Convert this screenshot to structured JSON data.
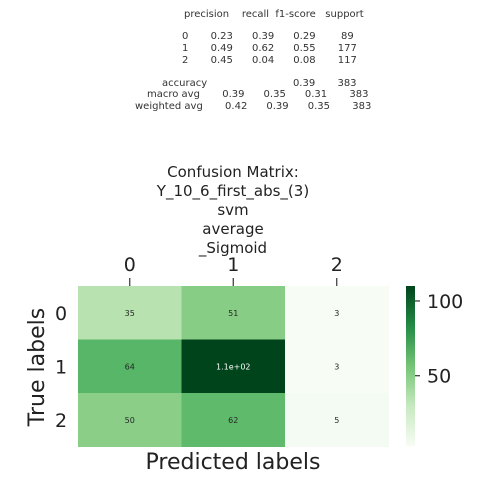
{
  "classification_report": {
    "header": "precision    recall  f1-score   support",
    "rows": [
      "0       0.23      0.39      0.29        89",
      "1       0.49      0.62      0.55       177",
      "2       0.45      0.04      0.08       117"
    ],
    "accuracy_row": "accuracy                           0.39       383",
    "macro_row": "macro avg       0.39      0.35      0.31       383",
    "weighted_row": "weighted avg       0.42      0.39      0.35       383"
  },
  "chart_data": {
    "type": "heatmap",
    "title_lines": [
      "Confusion Matrix:",
      "Y_10_6_first_abs_(3)",
      "svm",
      "average",
      "_Sigmoid"
    ],
    "x_categories": [
      "0",
      "1",
      "2"
    ],
    "y_categories": [
      "0",
      "1",
      "2"
    ],
    "xlabel": "Predicted labels",
    "ylabel": "True labels",
    "values": [
      [
        35,
        51,
        3
      ],
      [
        64,
        110,
        3
      ],
      [
        50,
        62,
        5
      ]
    ],
    "cell_labels": [
      [
        "35",
        "51",
        "3"
      ],
      [
        "64",
        "1.1e+02",
        "3"
      ],
      [
        "50",
        "62",
        "5"
      ]
    ],
    "colorbar": {
      "ticks": [
        50,
        100
      ],
      "tick_labels": [
        "50",
        "100"
      ],
      "min": 3,
      "max": 110
    },
    "colormap": "Greens",
    "x_axis_position": "top",
    "grid": false
  }
}
